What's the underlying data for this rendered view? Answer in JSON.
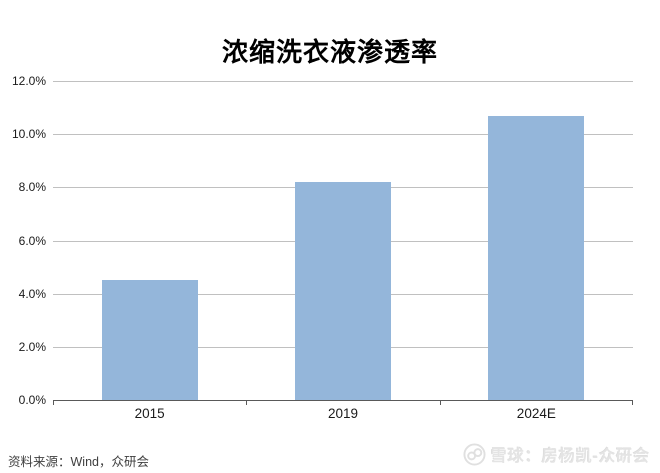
{
  "title": "浓缩洗衣液渗透率",
  "source_note": "资料来源：Wind，众研会",
  "watermark": {
    "logo": "xueqiu-snowball-logo",
    "text": "雪球：房杨凯-众研会"
  },
  "colors": {
    "bar": "#94b6da",
    "gridline": "#c0c0c0",
    "axis": "#595959",
    "title": "#000000",
    "tick_label": "#1a1a1a",
    "source": "#3f3f3f",
    "watermark": "#e4e4e4",
    "background": "#ffffff"
  },
  "chart_data": {
    "type": "bar",
    "title": "浓缩洗衣液渗透率",
    "categories": [
      "2015",
      "2019",
      "2024E"
    ],
    "values": [
      4.5,
      8.2,
      10.7
    ],
    "unit": "%",
    "xlabel": "",
    "ylabel": "",
    "ylim": [
      0,
      12
    ],
    "ytick_step": 2,
    "ytick_labels": [
      "0.0%",
      "2.0%",
      "4.0%",
      "6.0%",
      "8.0%",
      "10.0%",
      "12.0%"
    ],
    "grid": true,
    "legend_position": "none",
    "bar_color": "#94b6da"
  }
}
